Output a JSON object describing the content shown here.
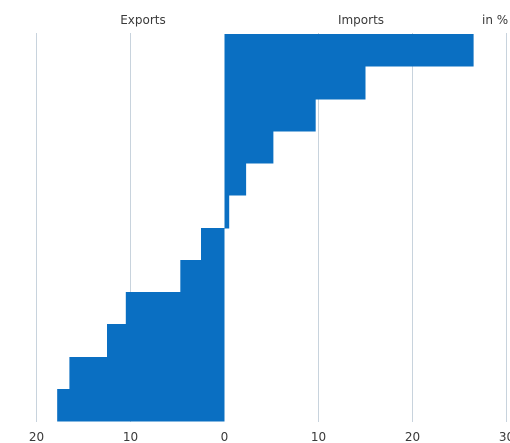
{
  "chart_data": {
    "type": "bar",
    "orientation": "horizontal",
    "headers": {
      "left": "Exports",
      "right": "Imports",
      "unit": "in %"
    },
    "x_ticks": [
      {
        "value": -20,
        "label": "20"
      },
      {
        "value": -10,
        "label": "10"
      },
      {
        "value": 0,
        "label": "0"
      },
      {
        "value": 10,
        "label": "10"
      },
      {
        "value": 20,
        "label": "20"
      },
      {
        "value": 30,
        "label": "30"
      }
    ],
    "xlim": [
      -20,
      30
    ],
    "grid": "vertical",
    "values": [
      26.5,
      15.0,
      9.7,
      5.2,
      2.3,
      0.5,
      -2.5,
      -4.7,
      -10.5,
      -12.5,
      -16.5,
      -17.8
    ],
    "color": "#0a6fc2"
  }
}
